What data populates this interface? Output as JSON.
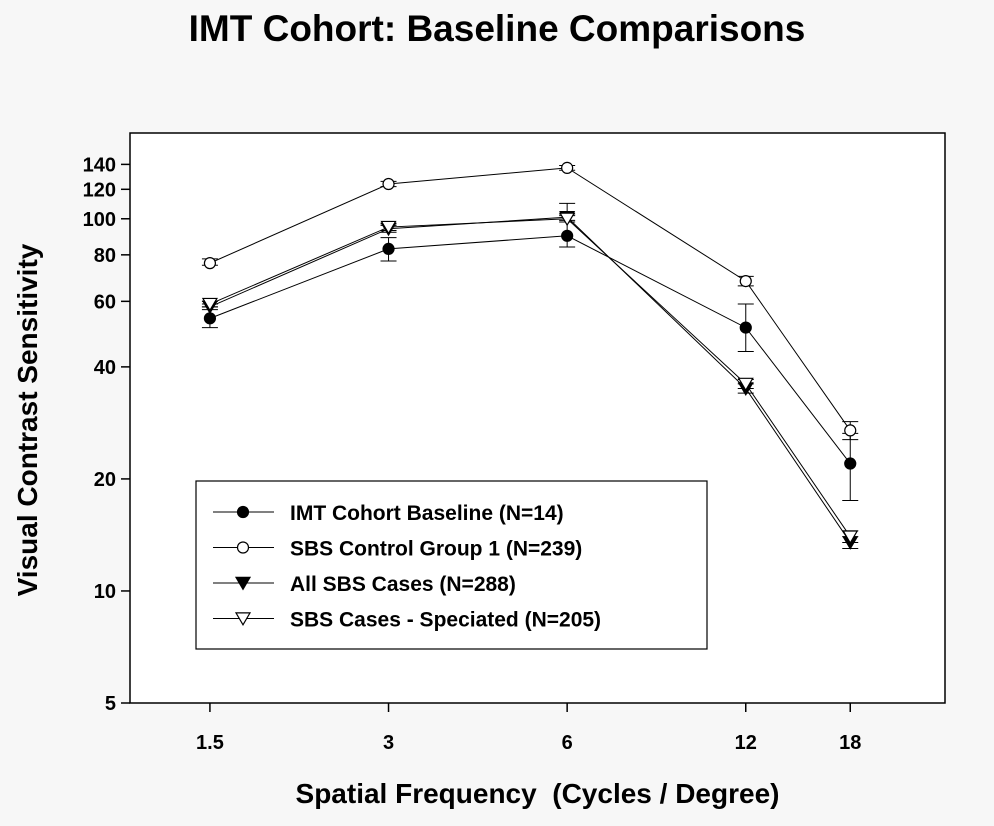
{
  "chart_data": {
    "type": "line",
    "title": "IMT Cohort: Baseline Comparisons",
    "xlabel": "Spatial Frequency  (Cycles / Degree)",
    "ylabel": "Visual Contrast Sensitivity",
    "x_scale": "log",
    "y_scale": "log",
    "x": [
      1.5,
      3,
      6,
      12,
      18
    ],
    "x_tick_labels": [
      "1.5",
      "3",
      "6",
      "12",
      "18"
    ],
    "y_ticks": [
      5,
      10,
      20,
      40,
      60,
      80,
      100,
      120,
      140
    ],
    "y_tick_labels": [
      "5",
      "10",
      "20",
      "40",
      "60",
      "80",
      "100",
      "120",
      "140"
    ],
    "ylim": [
      5,
      170
    ],
    "xlim": [
      1.1,
      26
    ],
    "grid": false,
    "legend_position": "lower-left",
    "series": [
      {
        "name": "IMT Cohort Baseline (N=14)",
        "marker": "filled-circle",
        "values": [
          54,
          83,
          90,
          51,
          22
        ],
        "error_low": [
          51,
          77,
          84,
          44,
          17.5
        ],
        "error_high": [
          58,
          89,
          110,
          59,
          26.5
        ]
      },
      {
        "name": "SBS Control Group 1 (N=239)",
        "marker": "open-circle",
        "values": [
          76,
          124,
          137,
          68,
          27
        ],
        "error_low": [
          75,
          122,
          135,
          66,
          25.5
        ],
        "error_high": [
          78,
          126,
          139,
          70,
          28.5
        ]
      },
      {
        "name": "All SBS Cases (N=288)",
        "marker": "filled-triangle-down",
        "values": [
          58,
          94,
          101,
          35,
          13.5
        ],
        "error_low": [
          57,
          92,
          99,
          34,
          13.0
        ],
        "error_high": [
          59,
          96,
          103,
          36,
          14.0
        ]
      },
      {
        "name": "SBS Cases - Speciated (N=205)",
        "marker": "open-triangle-down",
        "values": [
          59,
          95,
          100,
          36,
          14
        ],
        "error_low": [
          58,
          93,
          98,
          35,
          13.5
        ],
        "error_high": [
          60,
          97,
          102,
          37,
          14.5
        ]
      }
    ]
  }
}
